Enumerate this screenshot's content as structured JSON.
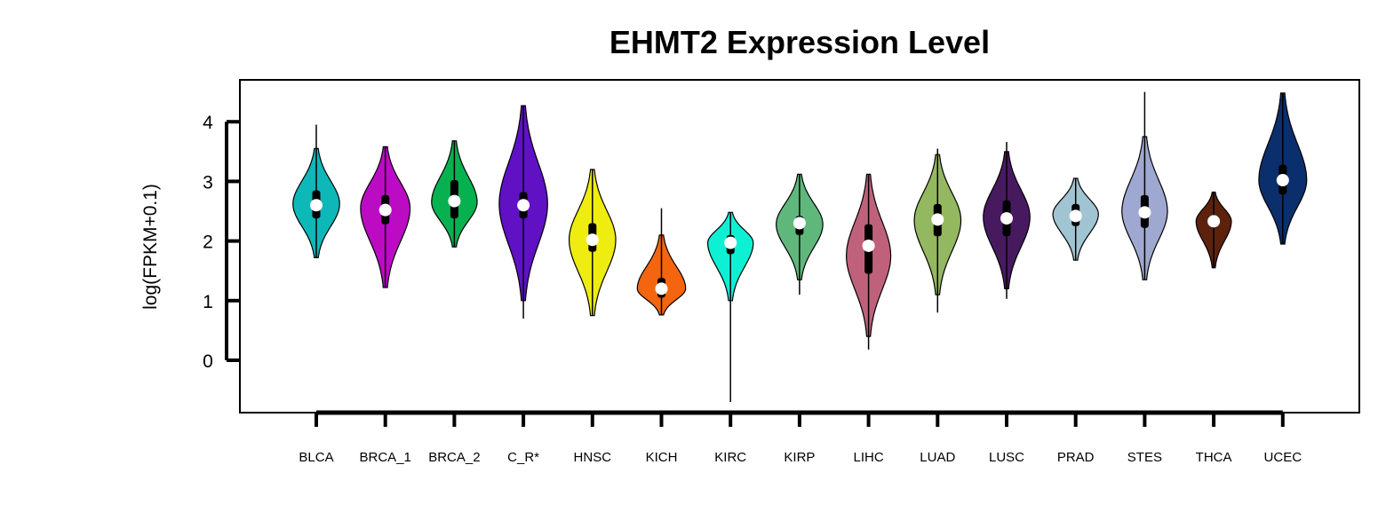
{
  "chart_data": {
    "type": "violin",
    "title": "EHMT2 Expression Level",
    "ylabel": "log(FPKM+0.1)",
    "xlabel": "",
    "ylim": [
      -0.9,
      4.7
    ],
    "yticks": [
      0,
      1,
      2,
      3,
      4
    ],
    "categories": [
      "BLCA",
      "BRCA_1",
      "BRCA_2",
      "C_R*",
      "HNSC",
      "KICH",
      "KIRC",
      "KIRP",
      "LIHC",
      "LUAD",
      "LUSC",
      "PRAD",
      "STES",
      "THCA",
      "UCEC"
    ],
    "colors": [
      "#0fb8b8",
      "#bb0cc4",
      "#08b150",
      "#6011c4",
      "#efec10",
      "#f3650f",
      "#0ef0d3",
      "#60b77c",
      "#c0617c",
      "#93b860",
      "#471a60",
      "#a0c4d2",
      "#9fa8d0",
      "#5c220c",
      "#0b2f6c"
    ],
    "series": [
      {
        "min": 1.72,
        "q1": 2.38,
        "median": 2.6,
        "q3": 2.85,
        "max": 3.95,
        "violin_min": 1.72,
        "violin_max": 3.55,
        "mode": 2.62,
        "width": 0.82
      },
      {
        "min": 1.22,
        "q1": 2.28,
        "median": 2.52,
        "q3": 2.77,
        "max": 3.58,
        "violin_min": 1.22,
        "violin_max": 3.58,
        "mode": 2.55,
        "width": 0.87
      },
      {
        "min": 1.9,
        "q1": 2.38,
        "median": 2.67,
        "q3": 3.02,
        "max": 3.68,
        "violin_min": 1.9,
        "violin_max": 3.68,
        "mode": 2.65,
        "width": 0.8
      },
      {
        "min": 0.7,
        "q1": 2.38,
        "median": 2.6,
        "q3": 2.82,
        "max": 4.27,
        "violin_min": 1.0,
        "violin_max": 4.27,
        "mode": 2.62,
        "width": 0.85
      },
      {
        "min": 0.75,
        "q1": 1.82,
        "median": 2.02,
        "q3": 2.3,
        "max": 3.2,
        "violin_min": 0.75,
        "violin_max": 3.2,
        "mode": 2.02,
        "width": 0.82
      },
      {
        "min": 0.76,
        "q1": 1.05,
        "median": 1.2,
        "q3": 1.38,
        "max": 2.55,
        "violin_min": 0.76,
        "violin_max": 2.1,
        "mode": 1.2,
        "width": 0.85
      },
      {
        "min": -0.7,
        "q1": 1.78,
        "median": 1.97,
        "q3": 2.1,
        "max": 2.48,
        "violin_min": 1.0,
        "violin_max": 2.48,
        "mode": 1.97,
        "width": 0.8
      },
      {
        "min": 1.1,
        "q1": 2.1,
        "median": 2.3,
        "q3": 2.42,
        "max": 3.12,
        "violin_min": 1.35,
        "violin_max": 3.12,
        "mode": 2.28,
        "width": 0.82
      },
      {
        "min": 0.18,
        "q1": 1.45,
        "median": 1.92,
        "q3": 2.28,
        "max": 3.12,
        "violin_min": 0.4,
        "violin_max": 3.12,
        "mode": 1.75,
        "width": 0.78
      },
      {
        "min": 0.8,
        "q1": 2.08,
        "median": 2.36,
        "q3": 2.62,
        "max": 3.55,
        "violin_min": 1.1,
        "violin_max": 3.45,
        "mode": 2.35,
        "width": 0.82
      },
      {
        "min": 1.03,
        "q1": 2.08,
        "median": 2.38,
        "q3": 2.68,
        "max": 3.66,
        "violin_min": 1.2,
        "violin_max": 3.5,
        "mode": 2.4,
        "width": 0.82
      },
      {
        "min": 1.68,
        "q1": 2.25,
        "median": 2.42,
        "q3": 2.62,
        "max": 3.05,
        "violin_min": 1.68,
        "violin_max": 3.05,
        "mode": 2.45,
        "width": 0.8
      },
      {
        "min": 1.35,
        "q1": 2.22,
        "median": 2.48,
        "q3": 2.77,
        "max": 4.5,
        "violin_min": 1.35,
        "violin_max": 3.75,
        "mode": 2.5,
        "width": 0.8
      },
      {
        "min": 1.55,
        "q1": 2.22,
        "median": 2.33,
        "q3": 2.42,
        "max": 2.82,
        "violin_min": 1.55,
        "violin_max": 2.82,
        "mode": 2.33,
        "width": 0.62
      },
      {
        "min": 1.95,
        "q1": 2.78,
        "median": 3.02,
        "q3": 3.28,
        "max": 4.48,
        "violin_min": 1.95,
        "violin_max": 4.48,
        "mode": 3.02,
        "width": 0.84
      }
    ],
    "grid": false,
    "legend": "none"
  }
}
